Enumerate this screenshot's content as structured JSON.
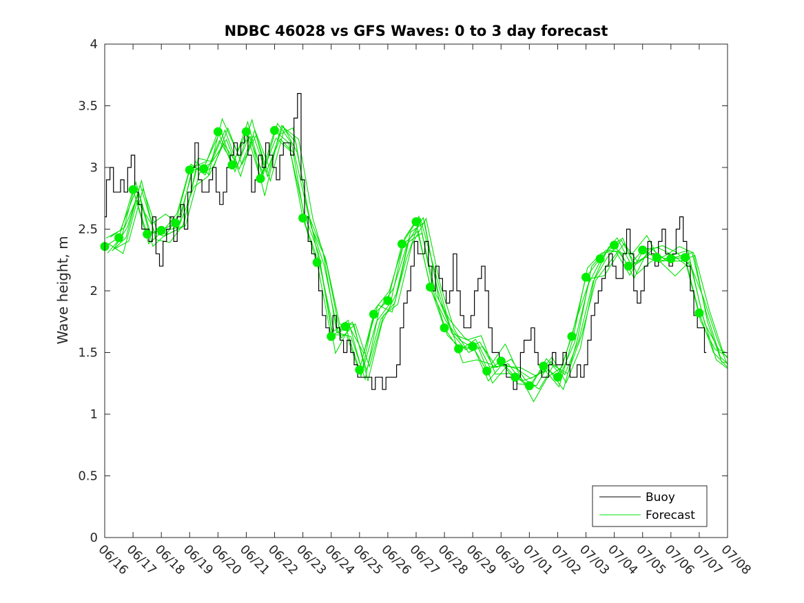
{
  "chart_data": {
    "type": "line",
    "title": "NDBC 46028 vs GFS Waves: 0 to 3 day forecast",
    "xlabel": "",
    "ylabel": "Wave height, m",
    "xlim": [
      "06/16",
      "07/08"
    ],
    "ylim": [
      0,
      4
    ],
    "x_tick_labels": [
      "06/16",
      "06/17",
      "06/18",
      "06/19",
      "06/20",
      "06/21",
      "06/22",
      "06/23",
      "06/24",
      "06/25",
      "06/26",
      "06/27",
      "06/28",
      "06/29",
      "06/30",
      "07/01",
      "07/02",
      "07/03",
      "07/04",
      "07/05",
      "07/06",
      "07/07",
      "07/08"
    ],
    "y_tick_labels": [
      "0",
      "0.5",
      "1",
      "1.5",
      "2",
      "2.5",
      "3",
      "3.5",
      "4"
    ],
    "y_ticks": [
      0,
      0.5,
      1,
      1.5,
      2,
      2.5,
      3,
      3.5,
      4
    ],
    "grid": false,
    "legend": {
      "placement": "bottom-right",
      "entries": [
        "Buoy",
        "Forecast"
      ]
    },
    "colors": {
      "buoy": "#000000",
      "forecast": "#00e000",
      "markers": "#00ee00"
    },
    "series": [
      {
        "name": "Buoy",
        "x_days_from_0616": [
          0,
          0.12,
          0.25,
          0.37,
          0.5,
          0.62,
          0.75,
          0.87,
          1.0,
          1.12,
          1.25,
          1.37,
          1.5,
          1.62,
          1.75,
          1.87,
          2.0,
          2.12,
          2.25,
          2.37,
          2.5,
          2.62,
          2.75,
          2.87,
          3.0,
          3.12,
          3.25,
          3.37,
          3.5,
          3.62,
          3.75,
          3.87,
          4.0,
          4.12,
          4.25,
          4.37,
          4.5,
          4.62,
          4.75,
          4.87,
          5.0,
          5.12,
          5.25,
          5.37,
          5.5,
          5.62,
          5.75,
          5.87,
          6.0,
          6.12,
          6.25,
          6.37,
          6.5,
          6.62,
          6.75,
          6.87,
          7.0,
          7.12,
          7.25,
          7.37,
          7.5,
          7.62,
          7.75,
          7.87,
          8.0,
          8.12,
          8.25,
          8.37,
          8.5,
          8.62,
          8.75,
          8.87,
          9.0,
          9.12,
          9.25,
          9.37,
          9.5,
          9.62,
          9.75,
          9.87,
          10.0,
          10.12,
          10.25,
          10.37,
          10.5,
          10.62,
          10.75,
          10.87,
          11.0,
          11.12,
          11.25,
          11.37,
          11.5,
          11.62,
          11.75,
          11.87,
          12.0,
          12.12,
          12.25,
          12.37,
          12.5,
          12.62,
          12.75,
          12.87,
          13.0,
          13.12,
          13.25,
          13.37,
          13.5,
          13.62,
          13.75,
          13.87,
          14.0,
          14.12,
          14.25,
          14.37,
          14.5,
          14.62,
          14.75,
          14.87,
          15.0,
          15.12,
          15.25,
          15.37,
          15.5,
          15.62,
          15.75,
          15.87,
          16.0,
          16.12,
          16.25,
          16.37,
          16.5,
          16.62,
          16.75,
          16.87,
          17.0,
          17.12,
          17.25,
          17.37,
          17.5,
          17.62,
          17.75,
          17.87,
          18.0,
          18.12,
          18.25,
          18.37,
          18.5,
          18.62,
          18.75,
          18.87,
          19.0,
          19.12,
          19.25,
          19.37,
          19.5,
          19.62,
          19.75,
          19.87,
          20.0,
          20.12,
          20.25,
          20.37,
          20.5,
          20.62,
          20.75,
          20.87,
          21.0,
          21.12,
          21.25
        ],
        "values": [
          2.6,
          2.9,
          3.0,
          2.8,
          2.8,
          2.9,
          2.8,
          3.0,
          3.1,
          2.8,
          2.7,
          2.5,
          2.5,
          2.4,
          2.6,
          2.3,
          2.2,
          2.4,
          2.5,
          2.6,
          2.4,
          2.6,
          2.7,
          2.5,
          2.8,
          3.0,
          3.2,
          2.9,
          2.8,
          2.8,
          2.9,
          3.0,
          2.8,
          2.7,
          2.8,
          3.0,
          3.1,
          3.2,
          3.1,
          3.2,
          3.3,
          3.1,
          2.8,
          2.9,
          3.1,
          3.0,
          3.2,
          3.1,
          3.0,
          2.9,
          3.1,
          3.2,
          3.2,
          3.1,
          3.4,
          3.6,
          2.9,
          2.6,
          2.4,
          2.3,
          2.2,
          2.0,
          1.8,
          1.7,
          1.6,
          1.8,
          1.7,
          1.6,
          1.5,
          1.6,
          1.5,
          1.4,
          1.3,
          1.3,
          1.3,
          1.3,
          1.2,
          1.3,
          1.3,
          1.2,
          1.3,
          1.3,
          1.3,
          1.4,
          1.7,
          1.9,
          2.0,
          2.2,
          2.4,
          2.3,
          2.3,
          2.4,
          2.2,
          2.0,
          2.2,
          2.1,
          2.0,
          1.9,
          2.0,
          2.3,
          2.0,
          1.8,
          1.7,
          1.7,
          1.8,
          2.0,
          2.1,
          2.2,
          2.0,
          1.7,
          1.5,
          1.5,
          1.4,
          1.4,
          1.3,
          1.3,
          1.2,
          1.3,
          1.5,
          1.6,
          1.6,
          1.7,
          1.5,
          1.4,
          1.3,
          1.3,
          1.4,
          1.5,
          1.4,
          1.4,
          1.5,
          1.4,
          1.3,
          1.3,
          1.4,
          1.3,
          1.4,
          1.6,
          1.8,
          1.9,
          2.0,
          2.1,
          2.2,
          2.3,
          2.2,
          2.1,
          2.1,
          2.3,
          2.5,
          2.3,
          2.0,
          1.9,
          2.0,
          2.2,
          2.4,
          2.3,
          2.2,
          2.4,
          2.5,
          2.3,
          2.2,
          2.3,
          2.5,
          2.6,
          2.4,
          2.2,
          2.0,
          1.8,
          1.7,
          1.7,
          1.5
        ]
      },
      {
        "name": "Forecast",
        "x_days_from_0616": [
          0,
          0.5,
          1.0,
          1.5,
          2.0,
          2.5,
          3.0,
          3.5,
          4.0,
          4.5,
          5.0,
          5.5,
          6.0,
          6.5,
          7.0,
          7.5,
          8.0,
          8.5,
          9.0,
          9.5,
          10.0,
          10.5,
          11.0,
          11.5,
          12.0,
          12.5,
          13.0,
          13.5,
          14.0,
          14.5,
          15.0,
          15.5,
          16.0,
          16.5,
          17.0,
          17.5,
          18.0,
          18.5,
          19.0,
          19.5,
          20.0,
          20.5,
          21.0,
          21.5,
          22.0
        ],
        "values": [
          2.36,
          2.43,
          2.82,
          2.46,
          2.49,
          2.55,
          2.98,
          2.99,
          3.29,
          3.02,
          3.29,
          2.91,
          3.3,
          3.2,
          2.59,
          2.23,
          1.63,
          1.71,
          1.36,
          1.81,
          1.92,
          2.38,
          2.56,
          2.03,
          1.7,
          1.53,
          1.55,
          1.35,
          1.43,
          1.3,
          1.23,
          1.39,
          1.3,
          1.63,
          2.11,
          2.26,
          2.37,
          2.2,
          2.33,
          2.27,
          2.26,
          2.27,
          1.82,
          1.5,
          1.38
        ]
      }
    ],
    "forecast_markers": {
      "x_days_from_0616": [
        0,
        0.5,
        1.0,
        1.5,
        2.0,
        2.5,
        3.0,
        3.5,
        4.0,
        4.5,
        5.0,
        5.5,
        6.0,
        7.0,
        7.5,
        8.0,
        8.5,
        9.0,
        9.5,
        10.0,
        10.5,
        11.0,
        11.5,
        12.0,
        12.5,
        13.0,
        13.5,
        14.0,
        14.5,
        15.0,
        15.5,
        16.0,
        16.5,
        17.0,
        17.5,
        18.0,
        18.5,
        19.0,
        19.5,
        20.0,
        20.5,
        21.0
      ],
      "values": [
        2.36,
        2.43,
        2.82,
        2.46,
        2.49,
        2.55,
        2.98,
        2.99,
        3.29,
        3.02,
        3.29,
        2.91,
        3.3,
        2.59,
        2.23,
        1.63,
        1.71,
        1.36,
        1.81,
        1.92,
        2.38,
        2.56,
        2.03,
        1.7,
        1.53,
        1.55,
        1.35,
        1.43,
        1.3,
        1.23,
        1.39,
        1.3,
        1.63,
        2.11,
        2.26,
        2.37,
        2.2,
        2.33,
        2.27,
        2.26,
        2.27,
        1.82
      ]
    }
  }
}
